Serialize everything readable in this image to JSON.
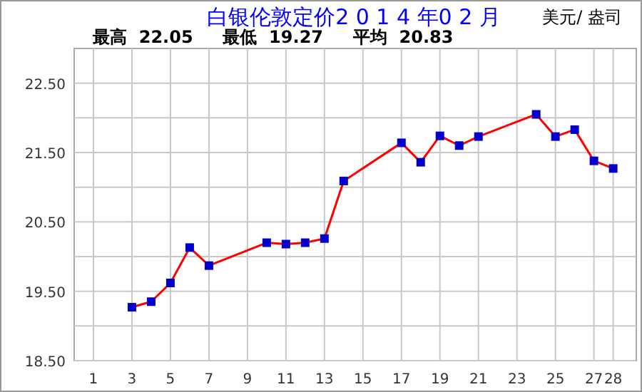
{
  "chart_data": {
    "type": "line",
    "title": "白银伦敦定价2 0 1 4 年0 2 月",
    "subtitle": "最高  22.05     最低  19.27     平均  20.83",
    "ylabel": "美元/ 盎司",
    "x": [
      3,
      4,
      5,
      6,
      7,
      10,
      11,
      12,
      13,
      14,
      17,
      18,
      19,
      20,
      21,
      24,
      25,
      26,
      27,
      28
    ],
    "series": [
      {
        "color": "#ff0000",
        "values": [
          19.27,
          19.35,
          19.62,
          20.13,
          19.87,
          20.2,
          20.18,
          20.2,
          20.26,
          21.09,
          21.64,
          21.36,
          21.74,
          21.6,
          21.73,
          22.05,
          21.73,
          21.83,
          21.38,
          21.27
        ]
      }
    ],
    "xlim": [
      0,
      29.2
    ],
    "xticks": [
      1,
      3,
      5,
      7,
      9,
      11,
      13,
      15,
      17,
      19,
      21,
      23,
      25,
      27,
      28
    ],
    "ylim": [
      18.5,
      23
    ],
    "yticks": [
      {
        "value": 18.5,
        "label": "18.50"
      },
      {
        "value": 19,
        "label": null
      },
      {
        "value": 19.5,
        "label": "19.50"
      },
      {
        "value": 20,
        "label": null
      },
      {
        "value": 20.5,
        "label": "20.50"
      },
      {
        "value": 21,
        "label": null
      },
      {
        "value": 21.5,
        "label": "21.50"
      },
      {
        "value": 22,
        "label": null
      },
      {
        "value": 22.5,
        "label": "22.50"
      }
    ],
    "grid": true,
    "marker": "square",
    "line_style": "solid"
  }
}
